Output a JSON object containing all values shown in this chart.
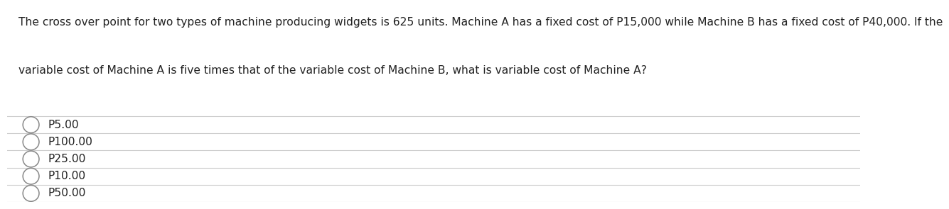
{
  "question_line1": "The cross over point for two types of machine producing widgets is 625 units. Machine A has a fixed cost of P15,000 while Machine B has a fixed cost of P40,000. If the",
  "question_line2": "variable cost of Machine A is five times that of the variable cost of Machine B, what is variable cost of Machine A?",
  "options": [
    "P5.00",
    "P100.00",
    "P25.00",
    "P10.00",
    "P50.00"
  ],
  "bg_color": "#ffffff",
  "text_color": "#222222",
  "option_text_color": "#222222",
  "line_color": "#cccccc",
  "question_fontsize": 11.2,
  "option_fontsize": 11.2,
  "fig_width": 12.0,
  "fig_height": 2.75
}
